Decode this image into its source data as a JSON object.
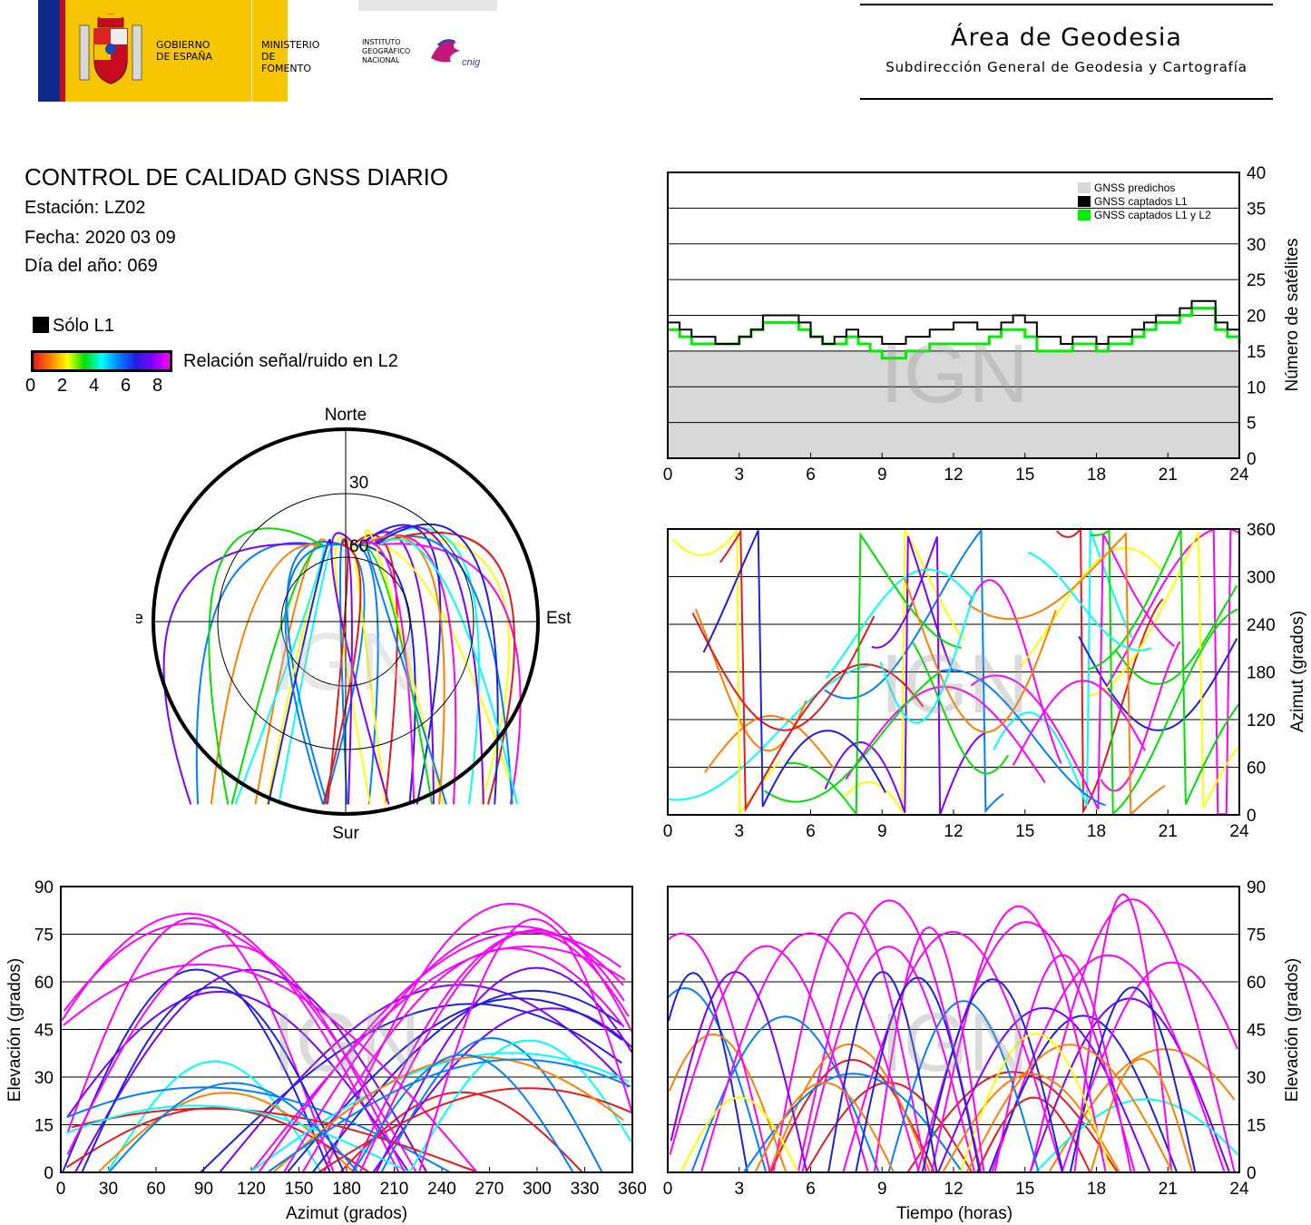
{
  "header": {
    "gov_line1": "GOBIERNO",
    "gov_line2": "DE ESPAÑA",
    "min_line1": "MINISTERIO",
    "min_line2": "DE FOMENTO",
    "ign_line1": "INSTITUTO",
    "ign_line2": "GEOGRÁFICO",
    "ign_line3": "NACIONAL",
    "cnig": "cnig",
    "area_title": "Área de Geodesia",
    "area_subtitle": "Subdirección General de Geodesia y Cartografía"
  },
  "info": {
    "title": "CONTROL DE CALIDAD GNSS DIARIO",
    "station": "Estación: LZ02",
    "date": "Fecha: 2020 03 09",
    "doy": "Día del año: 069",
    "legend_l1": "Sólo L1",
    "legend_snr": "Relación señal/ruido en L2",
    "snr_ticks": [
      "0",
      "2",
      "4",
      "6",
      "8"
    ]
  },
  "colors": {
    "snr_scale": [
      "#e41a1c",
      "#ff8000",
      "#ffff00",
      "#00e000",
      "#00ffff",
      "#0080ff",
      "#2020e0",
      "#8000ff",
      "#ff00ff"
    ],
    "sat_predicted": "#d8d8d8",
    "sat_l1": "#000000",
    "sat_l1l2": "#00ee00",
    "grid": "#000000"
  },
  "watermark": "IGN",
  "chart_data": [
    {
      "id": "satellite_count",
      "type": "area",
      "ylabel": "Número de satélites",
      "xlim": [
        0,
        24
      ],
      "ylim": [
        0,
        40
      ],
      "xticks": [
        "0",
        "3",
        "6",
        "9",
        "12",
        "15",
        "18",
        "21",
        "24"
      ],
      "yticks": [
        "0",
        "5",
        "10",
        "15",
        "20",
        "25",
        "30",
        "35",
        "40"
      ],
      "legend": [
        "GNSS predichos",
        "GNSS captados L1",
        "GNSS captados L1 y L2"
      ],
      "legend_position": "top-right",
      "series": [
        {
          "name": "GNSS captados L1",
          "x": [
            0,
            0.5,
            1,
            1.5,
            2,
            2.5,
            3,
            3.5,
            4,
            4.5,
            5,
            5.5,
            6,
            6.5,
            7,
            7.5,
            8,
            8.5,
            9,
            9.5,
            10,
            10.5,
            11,
            11.5,
            12,
            12.5,
            13,
            13.5,
            14,
            14.5,
            15,
            15.5,
            16,
            16.5,
            17,
            17.5,
            18,
            18.5,
            19,
            19.5,
            20,
            20.5,
            21,
            21.5,
            22,
            22.5,
            23,
            23.5,
            24
          ],
          "values": [
            19,
            18,
            17,
            17,
            16,
            16,
            17,
            18,
            20,
            20,
            20,
            19,
            17,
            16,
            17,
            18,
            17,
            17,
            16,
            16,
            17,
            17,
            18,
            18,
            19,
            19,
            18,
            18,
            19,
            20,
            19,
            17,
            17,
            16,
            17,
            17,
            16,
            17,
            17,
            18,
            19,
            20,
            20,
            21,
            22,
            22,
            19,
            18,
            17
          ]
        },
        {
          "name": "GNSS captados L1 y L2",
          "x": [
            0,
            0.5,
            1,
            1.5,
            2,
            2.5,
            3,
            3.5,
            4,
            4.5,
            5,
            5.5,
            6,
            6.5,
            7,
            7.5,
            8,
            8.5,
            9,
            9.5,
            10,
            10.5,
            11,
            11.5,
            12,
            12.5,
            13,
            13.5,
            14,
            14.5,
            15,
            15.5,
            16,
            16.5,
            17,
            17.5,
            18,
            18.5,
            19,
            19.5,
            20,
            20.5,
            21,
            21.5,
            22,
            22.5,
            23,
            23.5,
            24
          ],
          "values": [
            18,
            17,
            16,
            16,
            16,
            16,
            17,
            18,
            19,
            19,
            19,
            18,
            17,
            16,
            16,
            17,
            16,
            15,
            14,
            14,
            15,
            15,
            16,
            16,
            16,
            16,
            16,
            17,
            18,
            18,
            17,
            15,
            15,
            15,
            16,
            16,
            15,
            16,
            16,
            17,
            18,
            19,
            19,
            20,
            21,
            21,
            18,
            17,
            16
          ]
        }
      ]
    },
    {
      "id": "azimuth_vs_time",
      "type": "scatter",
      "ylabel": "Azimut (grados)",
      "xlim": [
        0,
        24
      ],
      "ylim": [
        0,
        360
      ],
      "xticks": [
        "0",
        "3",
        "6",
        "9",
        "12",
        "15",
        "18",
        "21",
        "24"
      ],
      "yticks": [
        "0",
        "60",
        "120",
        "180",
        "240",
        "300",
        "360"
      ]
    },
    {
      "id": "elevation_vs_azimuth",
      "type": "scatter",
      "xlabel": "Azimut (grados)",
      "ylabel": "Elevación (grados)",
      "xlim": [
        0,
        360
      ],
      "ylim": [
        0,
        90
      ],
      "xticks": [
        "0",
        "30",
        "60",
        "90",
        "120",
        "150",
        "180",
        "210",
        "240",
        "270",
        "300",
        "330",
        "360"
      ],
      "yticks": [
        "0",
        "15",
        "30",
        "45",
        "60",
        "75",
        "90"
      ]
    },
    {
      "id": "elevation_vs_time",
      "type": "scatter",
      "xlabel": "Tiempo (horas)",
      "ylabel": "Elevación (grados)",
      "xlim": [
        0,
        24
      ],
      "ylim": [
        0,
        90
      ],
      "xticks": [
        "0",
        "3",
        "6",
        "9",
        "12",
        "15",
        "18",
        "21",
        "24"
      ],
      "yticks": [
        "0",
        "15",
        "30",
        "45",
        "60",
        "75",
        "90"
      ]
    },
    {
      "id": "skyplot",
      "type": "scatter",
      "labels": {
        "north": "Norte",
        "south": "Sur",
        "east": "Este",
        "west": "Oeste"
      },
      "rings": [
        "30",
        "60"
      ]
    }
  ]
}
